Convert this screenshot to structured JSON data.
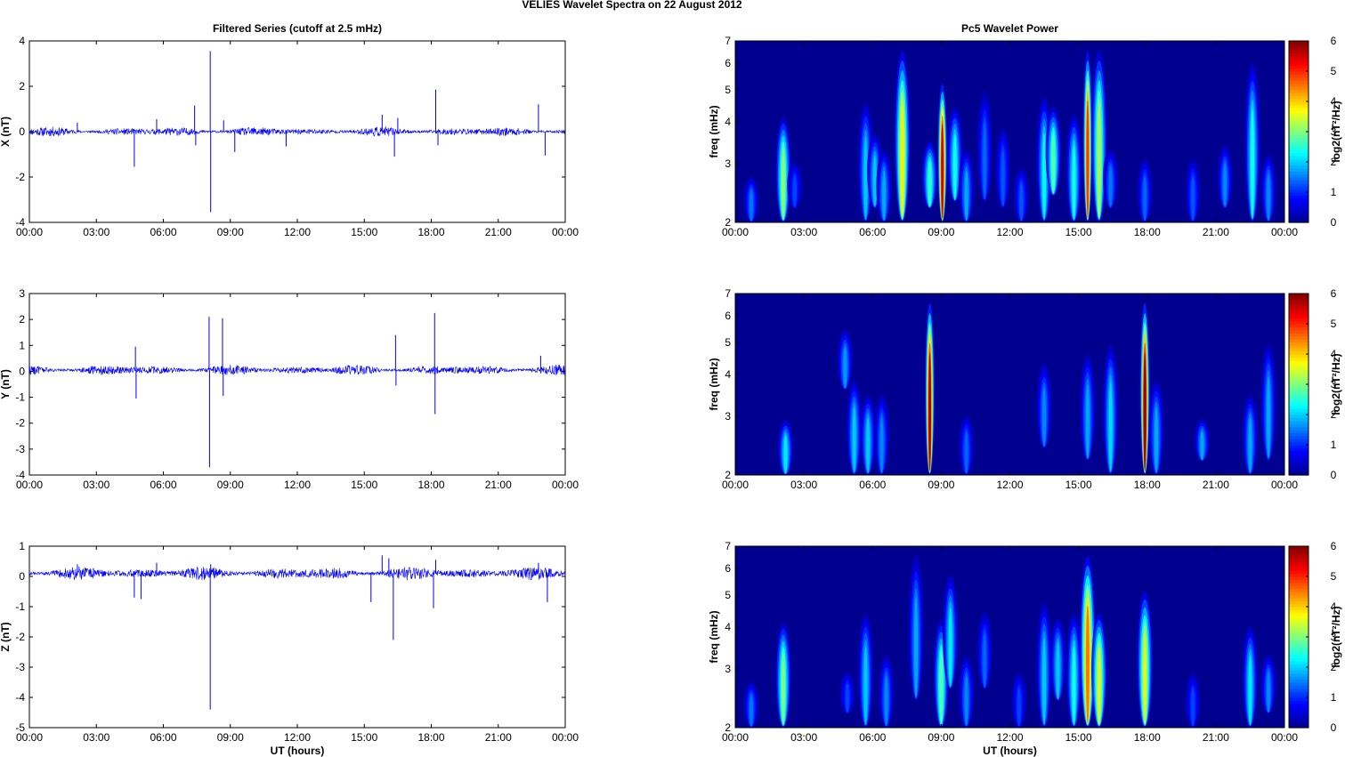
{
  "figure": {
    "suptitle": "VELIES Wavelet Spectra on 22 August    2012"
  },
  "colors": {
    "trace": "#0000ff",
    "axes": "#000000",
    "colormap": [
      "#00008f",
      "#0000ff",
      "#00ffff",
      "#ffff00",
      "#ff0000",
      "#800000"
    ]
  },
  "chart_data": [
    {
      "type": "line",
      "panel": "left-x",
      "title": "Filtered Series (cutoff at 2.5 mHz)",
      "xlabel": "",
      "ylabel": "X (nT)",
      "xlim": [
        "00:00",
        "00:00 (+24h)"
      ],
      "ylim": [
        -4,
        4
      ],
      "xticks": [
        "00:00",
        "03:00",
        "06:00",
        "09:00",
        "12:00",
        "15:00",
        "18:00",
        "21:00",
        "00:00"
      ],
      "yticks": [
        "-4",
        "-2",
        "0",
        "2",
        "4"
      ],
      "baseline": 0.0,
      "noise_amplitude": 0.12,
      "spikes": [
        {
          "t": 2.15,
          "v": 0.4
        },
        {
          "t": 4.7,
          "v": -1.55
        },
        {
          "t": 5.7,
          "v": 0.55
        },
        {
          "t": 7.4,
          "v": 1.15
        },
        {
          "t": 7.45,
          "v": -0.6
        },
        {
          "t": 8.1,
          "v": 3.55
        },
        {
          "t": 8.12,
          "v": -3.55
        },
        {
          "t": 8.7,
          "v": 0.5
        },
        {
          "t": 9.2,
          "v": -0.9
        },
        {
          "t": 11.5,
          "v": -0.65
        },
        {
          "t": 15.8,
          "v": 0.75
        },
        {
          "t": 16.35,
          "v": -1.1
        },
        {
          "t": 16.5,
          "v": 0.6
        },
        {
          "t": 18.2,
          "v": 1.85
        },
        {
          "t": 18.3,
          "v": -0.6
        },
        {
          "t": 22.8,
          "v": 1.2
        },
        {
          "t": 23.1,
          "v": -1.05
        }
      ]
    },
    {
      "type": "heatmap",
      "panel": "right-x",
      "title": "Pc5 Wavelet Power",
      "xlabel": "",
      "ylabel": "freq (mHz)",
      "yscale": "log",
      "ylim": [
        2,
        7
      ],
      "xticks": [
        "00:00",
        "03:00",
        "06:00",
        "09:00",
        "12:00",
        "15:00",
        "18:00",
        "21:00",
        "00:00"
      ],
      "yticks": [
        "2",
        "3",
        "4",
        "5",
        "6",
        "7"
      ],
      "colorbar": {
        "label": "log2(nT²/Hz)",
        "ticks": [
          "0",
          "1",
          "2",
          "3",
          "4",
          "5",
          "6"
        ],
        "range": [
          0,
          6
        ]
      },
      "features": [
        {
          "t": 0.7,
          "f0": 2.0,
          "f1": 2.8,
          "p": 1.5
        },
        {
          "t": 2.1,
          "f0": 2.0,
          "f1": 4.3,
          "p": 3.1
        },
        {
          "t": 2.6,
          "f0": 2.2,
          "f1": 3.1,
          "p": 1.2
        },
        {
          "t": 5.7,
          "f0": 2.0,
          "f1": 4.8,
          "p": 2.0
        },
        {
          "t": 6.1,
          "f0": 2.2,
          "f1": 3.8,
          "p": 2.0
        },
        {
          "t": 6.5,
          "f0": 2.0,
          "f1": 3.4,
          "p": 1.8
        },
        {
          "t": 7.3,
          "f0": 2.0,
          "f1": 7.0,
          "p": 3.8
        },
        {
          "t": 8.5,
          "f0": 2.2,
          "f1": 3.6,
          "p": 2.6
        },
        {
          "t": 9.05,
          "f0": 2.0,
          "f1": 5.5,
          "p": 5.6
        },
        {
          "t": 9.6,
          "f0": 2.3,
          "f1": 4.6,
          "p": 2.4
        },
        {
          "t": 10.1,
          "f0": 2.0,
          "f1": 3.4,
          "p": 1.8
        },
        {
          "t": 10.9,
          "f0": 2.3,
          "f1": 5.2,
          "p": 1.4
        },
        {
          "t": 11.7,
          "f0": 2.2,
          "f1": 4.0,
          "p": 1.3
        },
        {
          "t": 12.5,
          "f0": 2.0,
          "f1": 3.0,
          "p": 1.3
        },
        {
          "t": 13.5,
          "f0": 2.0,
          "f1": 5.0,
          "p": 2.3
        },
        {
          "t": 13.9,
          "f0": 2.4,
          "f1": 4.6,
          "p": 2.8
        },
        {
          "t": 14.8,
          "f0": 2.0,
          "f1": 4.4,
          "p": 2.4
        },
        {
          "t": 15.4,
          "f0": 2.0,
          "f1": 7.0,
          "p": 5.0
        },
        {
          "t": 15.9,
          "f0": 2.0,
          "f1": 7.0,
          "p": 3.3
        },
        {
          "t": 16.4,
          "f0": 2.2,
          "f1": 3.4,
          "p": 1.5
        },
        {
          "t": 17.9,
          "f0": 2.0,
          "f1": 3.2,
          "p": 1.4
        },
        {
          "t": 20.0,
          "f0": 2.0,
          "f1": 3.2,
          "p": 1.3
        },
        {
          "t": 21.4,
          "f0": 2.2,
          "f1": 3.5,
          "p": 1.6
        },
        {
          "t": 22.6,
          "f0": 2.0,
          "f1": 6.4,
          "p": 2.4
        },
        {
          "t": 23.3,
          "f0": 2.0,
          "f1": 3.3,
          "p": 1.6
        }
      ]
    },
    {
      "type": "line",
      "panel": "left-y",
      "title": "",
      "xlabel": "",
      "ylabel": "Y (nT)",
      "ylim": [
        -4,
        3
      ],
      "xticks": [
        "00:00",
        "03:00",
        "06:00",
        "09:00",
        "12:00",
        "15:00",
        "18:00",
        "21:00",
        "00:00"
      ],
      "yticks": [
        "-4",
        "-3",
        "-2",
        "-1",
        "0",
        "1",
        "2",
        "3"
      ],
      "baseline": 0.05,
      "noise_amplitude": 0.12,
      "spikes": [
        {
          "t": 4.75,
          "v": 0.95
        },
        {
          "t": 4.78,
          "v": -1.05
        },
        {
          "t": 8.05,
          "v": 2.1
        },
        {
          "t": 8.07,
          "v": -3.7
        },
        {
          "t": 8.65,
          "v": 2.05
        },
        {
          "t": 8.68,
          "v": -0.95
        },
        {
          "t": 16.4,
          "v": 1.4
        },
        {
          "t": 16.42,
          "v": -0.55
        },
        {
          "t": 18.15,
          "v": 2.25
        },
        {
          "t": 18.17,
          "v": -1.65
        },
        {
          "t": 22.9,
          "v": 0.6
        }
      ]
    },
    {
      "type": "heatmap",
      "panel": "right-y",
      "title": "",
      "xlabel": "",
      "ylabel": "freq (mHz)",
      "yscale": "log",
      "ylim": [
        2,
        7
      ],
      "xticks": [
        "00:00",
        "03:00",
        "06:00",
        "09:00",
        "12:00",
        "15:00",
        "18:00",
        "21:00",
        "00:00"
      ],
      "yticks": [
        "2",
        "3",
        "4",
        "5",
        "6",
        "7"
      ],
      "colorbar": {
        "label": "log2(nT²/Hz)",
        "ticks": [
          "0",
          "1",
          "2",
          "3",
          "4",
          "5",
          "6"
        ],
        "range": [
          0,
          6
        ]
      },
      "features": [
        {
          "t": 2.2,
          "f0": 2.0,
          "f1": 3.0,
          "p": 2.2
        },
        {
          "t": 4.8,
          "f0": 3.6,
          "f1": 5.6,
          "p": 1.7
        },
        {
          "t": 5.2,
          "f0": 2.0,
          "f1": 4.0,
          "p": 2.0
        },
        {
          "t": 5.8,
          "f0": 2.0,
          "f1": 3.6,
          "p": 2.0
        },
        {
          "t": 6.4,
          "f0": 2.0,
          "f1": 3.6,
          "p": 1.6
        },
        {
          "t": 8.5,
          "f0": 2.0,
          "f1": 7.0,
          "p": 5.8
        },
        {
          "t": 10.1,
          "f0": 2.0,
          "f1": 3.1,
          "p": 1.4
        },
        {
          "t": 13.5,
          "f0": 2.4,
          "f1": 4.5,
          "p": 1.6
        },
        {
          "t": 15.4,
          "f0": 2.2,
          "f1": 4.8,
          "p": 1.8
        },
        {
          "t": 16.4,
          "f0": 2.0,
          "f1": 5.2,
          "p": 2.1
        },
        {
          "t": 17.9,
          "f0": 2.0,
          "f1": 7.0,
          "p": 6.0
        },
        {
          "t": 18.4,
          "f0": 2.0,
          "f1": 4.0,
          "p": 1.8
        },
        {
          "t": 20.4,
          "f0": 2.2,
          "f1": 3.0,
          "p": 1.8
        },
        {
          "t": 22.5,
          "f0": 2.0,
          "f1": 3.6,
          "p": 1.8
        },
        {
          "t": 23.3,
          "f0": 2.2,
          "f1": 5.2,
          "p": 1.8
        }
      ]
    },
    {
      "type": "line",
      "panel": "left-z",
      "title": "",
      "xlabel": "UT (hours)",
      "ylabel": "Z (nT)",
      "ylim": [
        -5,
        1
      ],
      "xticks": [
        "00:00",
        "03:00",
        "06:00",
        "09:00",
        "12:00",
        "15:00",
        "18:00",
        "21:00",
        "00:00"
      ],
      "yticks": [
        "-5",
        "-4",
        "-3",
        "-2",
        "-1",
        "0",
        "1"
      ],
      "baseline": 0.1,
      "noise_amplitude": 0.13,
      "spikes": [
        {
          "t": 2.15,
          "v": 0.4
        },
        {
          "t": 4.7,
          "v": -0.7
        },
        {
          "t": 5.0,
          "v": -0.75
        },
        {
          "t": 5.7,
          "v": 0.45
        },
        {
          "t": 8.1,
          "v": -4.4
        },
        {
          "t": 8.12,
          "v": 0.4
        },
        {
          "t": 15.3,
          "v": -0.85
        },
        {
          "t": 15.8,
          "v": 0.7
        },
        {
          "t": 16.3,
          "v": -2.1
        },
        {
          "t": 16.1,
          "v": 0.6
        },
        {
          "t": 18.1,
          "v": -1.05
        },
        {
          "t": 18.2,
          "v": 0.55
        },
        {
          "t": 22.8,
          "v": 0.45
        },
        {
          "t": 23.2,
          "v": -0.85
        }
      ]
    },
    {
      "type": "heatmap",
      "panel": "right-z",
      "title": "",
      "xlabel": "UT (hours)",
      "ylabel": "freq (mHz)",
      "yscale": "log",
      "ylim": [
        2,
        7
      ],
      "xticks": [
        "00:00",
        "03:00",
        "06:00",
        "09:00",
        "12:00",
        "15:00",
        "18:00",
        "21:00",
        "00:00"
      ],
      "yticks": [
        "2",
        "3",
        "4",
        "5",
        "6",
        "7"
      ],
      "colorbar": {
        "label": "log2(nT²/Hz)",
        "ticks": [
          "0",
          "1",
          "2",
          "3",
          "4",
          "5",
          "6"
        ],
        "range": [
          0,
          6
        ]
      },
      "features": [
        {
          "t": 0.7,
          "f0": 2.0,
          "f1": 2.8,
          "p": 1.5
        },
        {
          "t": 2.1,
          "f0": 2.0,
          "f1": 4.3,
          "p": 3.0
        },
        {
          "t": 4.9,
          "f0": 2.2,
          "f1": 3.0,
          "p": 1.2
        },
        {
          "t": 5.7,
          "f0": 2.0,
          "f1": 4.6,
          "p": 2.0
        },
        {
          "t": 6.6,
          "f0": 2.0,
          "f1": 3.4,
          "p": 1.6
        },
        {
          "t": 7.9,
          "f0": 2.4,
          "f1": 7.0,
          "p": 1.8
        },
        {
          "t": 9.0,
          "f0": 2.0,
          "f1": 4.4,
          "p": 2.8
        },
        {
          "t": 9.4,
          "f0": 2.6,
          "f1": 6.0,
          "p": 2.2
        },
        {
          "t": 10.1,
          "f0": 2.0,
          "f1": 3.4,
          "p": 1.6
        },
        {
          "t": 10.9,
          "f0": 2.6,
          "f1": 4.6,
          "p": 1.4
        },
        {
          "t": 12.4,
          "f0": 2.0,
          "f1": 3.0,
          "p": 1.2
        },
        {
          "t": 13.5,
          "f0": 2.0,
          "f1": 5.0,
          "p": 2.0
        },
        {
          "t": 14.1,
          "f0": 2.4,
          "f1": 4.4,
          "p": 2.0
        },
        {
          "t": 14.8,
          "f0": 2.0,
          "f1": 4.6,
          "p": 2.4
        },
        {
          "t": 15.4,
          "f0": 2.0,
          "f1": 7.0,
          "p": 4.6
        },
        {
          "t": 15.9,
          "f0": 2.0,
          "f1": 4.6,
          "p": 3.6
        },
        {
          "t": 17.9,
          "f0": 2.0,
          "f1": 5.4,
          "p": 3.6
        },
        {
          "t": 20.0,
          "f0": 2.0,
          "f1": 3.0,
          "p": 1.2
        },
        {
          "t": 22.5,
          "f0": 2.0,
          "f1": 4.2,
          "p": 2.2
        },
        {
          "t": 23.3,
          "f0": 2.2,
          "f1": 3.4,
          "p": 1.6
        }
      ]
    }
  ]
}
